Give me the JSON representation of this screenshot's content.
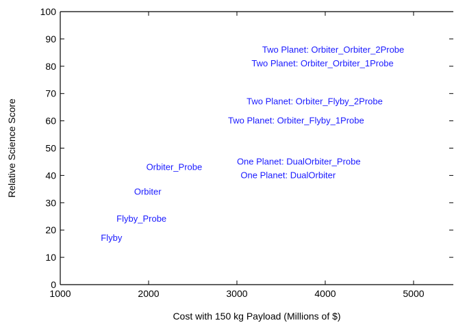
{
  "chart_data": {
    "type": "scatter",
    "title": "",
    "xlabel": "Cost with 150 kg Payload (Millions of $)",
    "ylabel": "Relative Science Score",
    "xlim": [
      1000,
      5450
    ],
    "ylim": [
      0,
      100
    ],
    "x_ticks": [
      1000,
      2000,
      3000,
      4000,
      5000
    ],
    "y_ticks": [
      0,
      10,
      20,
      30,
      40,
      50,
      60,
      70,
      80,
      90,
      100
    ],
    "grid": false,
    "marker_style": "text-label",
    "label_color": "#1a1aff",
    "points": [
      {
        "label": "Flyby",
        "x": 1580,
        "y": 17
      },
      {
        "label": "Flyby_Probe",
        "x": 1920,
        "y": 24
      },
      {
        "label": "Orbiter",
        "x": 1990,
        "y": 34
      },
      {
        "label": "Orbiter_Probe",
        "x": 2290,
        "y": 43
      },
      {
        "label": "One Planet: DualOrbiter",
        "x": 3580,
        "y": 40
      },
      {
        "label": "One Planet: DualOrbiter_Probe",
        "x": 3700,
        "y": 45
      },
      {
        "label": "Two Planet: Orbiter_Flyby_1Probe",
        "x": 3670,
        "y": 60
      },
      {
        "label": "Two Planet: Orbiter_Flyby_2Probe",
        "x": 3880,
        "y": 67
      },
      {
        "label": "Two Planet: Orbiter_Orbiter_1Probe",
        "x": 3970,
        "y": 81
      },
      {
        "label": "Two Planet: Orbiter_Orbiter_2Probe",
        "x": 4090,
        "y": 86
      }
    ]
  }
}
